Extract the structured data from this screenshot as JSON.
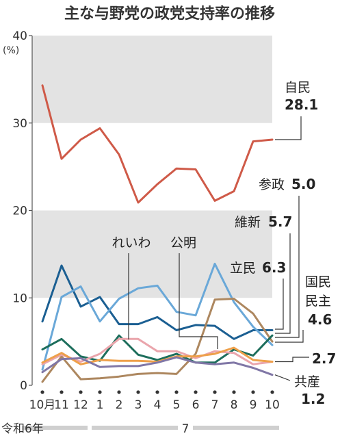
{
  "chart_data": {
    "type": "line",
    "title": "主な与野党の政党支持率の推移",
    "y_unit": "(%)",
    "ylim": [
      0,
      40
    ],
    "y_ticks": [
      "0",
      "10",
      "20",
      "30",
      "40"
    ],
    "grid": false,
    "categories": [
      "10月",
      "11",
      "12",
      "1",
      "2",
      "3",
      "4",
      "5",
      "6",
      "7",
      "8",
      "9",
      "10"
    ],
    "year_labels": [
      "令和6年",
      "7"
    ],
    "series": [
      {
        "name": "自民",
        "value_label": "28.1",
        "color": "#cf5a48",
        "values": [
          34.3,
          25.9,
          28.1,
          29.4,
          26.4,
          20.9,
          23.0,
          24.8,
          24.7,
          21.1,
          22.2,
          27.9,
          28.1
        ]
      },
      {
        "name": "立民",
        "value_label": "6.3",
        "color": "#1b5f92",
        "values": [
          7.3,
          13.7,
          9.0,
          10.1,
          7.0,
          7.0,
          7.8,
          6.3,
          6.9,
          6.8,
          5.3,
          6.3,
          6.3
        ]
      },
      {
        "name": "国民民主",
        "value_label": "4.6",
        "color": "#6aa8d8",
        "values": [
          1.8,
          10.1,
          11.3,
          7.3,
          9.9,
          11.1,
          11.4,
          8.4,
          8.0,
          13.9,
          9.5,
          6.7,
          4.6
        ]
      },
      {
        "name": "参政",
        "value_label": "5.0",
        "color": "#ad875f",
        "values": [
          0.4,
          3.3,
          0.7,
          0.8,
          1.0,
          1.3,
          1.4,
          1.3,
          3.6,
          9.8,
          9.9,
          8.2,
          5.0
        ]
      },
      {
        "name": "維新",
        "value_label": "5.7",
        "color": "#1d6e5c",
        "values": [
          4.1,
          5.3,
          3.3,
          2.8,
          5.7,
          3.5,
          2.9,
          3.6,
          2.6,
          2.6,
          4.1,
          3.4,
          5.7
        ]
      },
      {
        "name": "れいわ",
        "value_label": "",
        "color": "#eaa5ac",
        "values": [
          2.4,
          3.5,
          2.7,
          3.6,
          5.3,
          5.3,
          3.9,
          3.9,
          3.1,
          3.9,
          3.7,
          2.4,
          2.7
        ]
      },
      {
        "name": "公明",
        "value_label": "2.7",
        "color": "#eea04a",
        "values": [
          2.6,
          3.7,
          2.4,
          2.9,
          2.8,
          2.8,
          2.7,
          3.3,
          3.3,
          3.6,
          4.3,
          2.9,
          2.7
        ]
      },
      {
        "name": "共産",
        "value_label": "1.2",
        "color": "#8077a6",
        "values": [
          1.5,
          3.0,
          3.1,
          2.1,
          2.2,
          2.2,
          2.6,
          3.2,
          2.6,
          2.4,
          2.6,
          2.0,
          1.2
        ]
      }
    ]
  }
}
